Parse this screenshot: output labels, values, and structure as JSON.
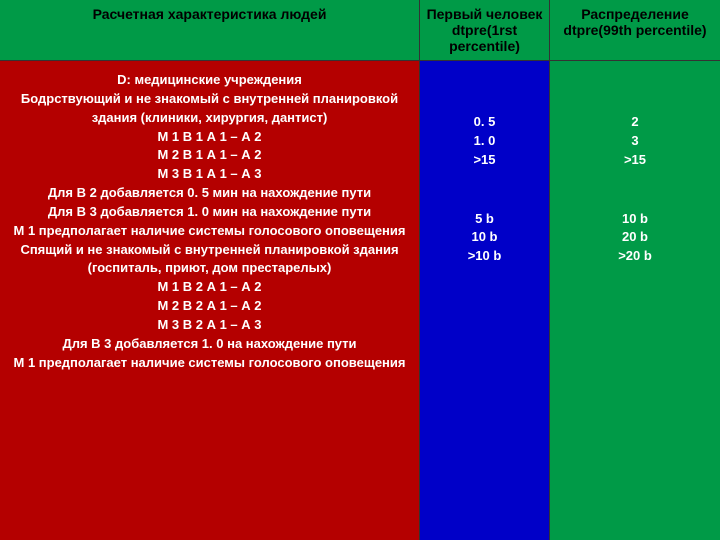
{
  "header": {
    "col1": "Расчетная характеристика людей",
    "col2": "Первый человек dtpre(1rst percentile)",
    "col3": "Распределение dtpre(99th percentile)"
  },
  "body": {
    "col1": {
      "l1": "D: медицинские учреждения",
      "l2": "Бодрствующий и не знакомый с внутренней планировкой",
      "l3": "здания (клиники, хирургия, дантист)",
      "l4": "М 1 В 1 А 1 – А 2",
      "l5": "М 2 В 1 А 1 – А 2",
      "l6": "М 3 В 1 А 1 – А 3",
      "l7": "Для В 2 добавляется 0. 5 мин  на нахождение пути",
      "l8": "Для В 3 добавляется 1. 0 мин на нахождение пути",
      "l9": "М 1 предполагает наличие системы голосового оповещения",
      "l10": "Спящий и  не знакомый с внутренней планировкой здания",
      "l11": "(госпиталь, приют, дом престарелых)",
      "l12": "М 1 В 2 А 1 – А 2",
      "l13": "М 2 В 2 А 1 – А 2",
      "l14": "М 3 В 2 А 1 – А 3",
      "l15": "Для В 3 добавляется 1. 0 на нахождение пути",
      "l16": "М 1 предполагает наличие системы голосового оповещения"
    },
    "col2": {
      "b1v1": "0. 5",
      "b1v2": "1. 0",
      "b1v3": ">15",
      "b2v1": "5 b",
      "b2v2": "10 b",
      "b2v3": ">10 b"
    },
    "col3": {
      "b1v1": "2",
      "b1v2": "3",
      "b1v3": ">15",
      "b2v1": "10 b",
      "b2v2": "20 b",
      "b2v3": ">20 b"
    }
  }
}
